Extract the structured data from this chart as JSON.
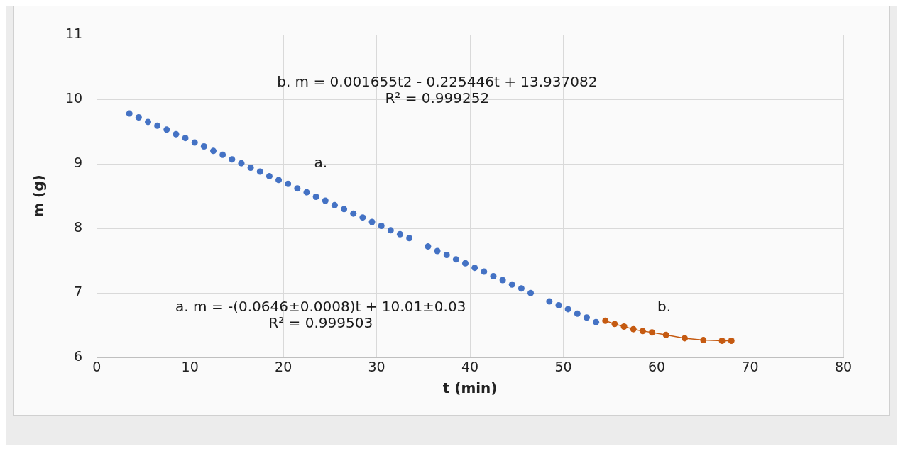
{
  "chart_data": {
    "type": "scatter",
    "xlabel": "t (min)",
    "ylabel": "m (g)",
    "xlim": [
      0,
      80
    ],
    "xticks": [
      0,
      10,
      20,
      30,
      40,
      50,
      60,
      70,
      80
    ],
    "ylim": [
      6,
      11
    ],
    "yticks": [
      6,
      7,
      8,
      9,
      10,
      11
    ],
    "grid": true,
    "legend": false,
    "marker": "circle",
    "series": [
      {
        "color": "#4472c4",
        "x": [
          3.5,
          4.5,
          5.5,
          6.5,
          7.5,
          8.5,
          9.5,
          10.5,
          11.5,
          12.5,
          13.5,
          14.5,
          15.5,
          16.5,
          17.5,
          18.5,
          19.5,
          20.5,
          21.5,
          22.5,
          23.5,
          24.5,
          25.5,
          26.5,
          27.5,
          28.5,
          29.5,
          30.5,
          31.5,
          32.5,
          33.5,
          35.5,
          36.5,
          37.5,
          38.5,
          39.5,
          40.5,
          41.5,
          42.5,
          43.5,
          44.5,
          45.5,
          46.5,
          48.5,
          49.5,
          50.5,
          51.5,
          52.5,
          53.5
        ],
        "values": [
          9.78,
          9.72,
          9.65,
          9.59,
          9.53,
          9.46,
          9.4,
          9.33,
          9.27,
          9.2,
          9.14,
          9.07,
          9.01,
          8.94,
          8.88,
          8.81,
          8.75,
          8.69,
          8.62,
          8.56,
          8.49,
          8.43,
          8.36,
          8.3,
          8.23,
          8.17,
          8.1,
          8.04,
          7.97,
          7.91,
          7.85,
          7.72,
          7.65,
          7.59,
          7.52,
          7.46,
          7.39,
          7.33,
          7.26,
          7.2,
          7.13,
          7.07,
          7.0,
          6.87,
          6.81,
          6.75,
          6.68,
          6.62,
          6.55
        ]
      },
      {
        "type": "line",
        "color": "#c55a11",
        "x": [
          54.5,
          55.5,
          56.5,
          57.5,
          58.5,
          59.5,
          61,
          63,
          65,
          67,
          68
        ],
        "values": [
          6.57,
          6.52,
          6.48,
          6.44,
          6.41,
          6.39,
          6.35,
          6.3,
          6.27,
          6.26,
          6.26
        ]
      }
    ],
    "annotations": [
      "b. m = 0.001655t2 - 0.225446t + 13.937082",
      "R² = 0.999252",
      "a.",
      "a. m = -(0.0646±0.0008)t + 10.01±0.03",
      "R² = 0.999503",
      "b."
    ]
  }
}
